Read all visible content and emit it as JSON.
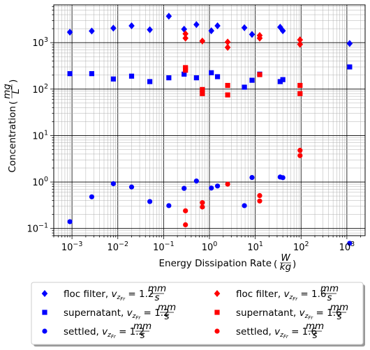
{
  "chart_data": {
    "type": "scatter",
    "title": "",
    "xlabel_parts": [
      "Energy Dissipation Rate ",
      "W",
      "kg"
    ],
    "ylabel_parts": [
      "Concentration ",
      "mg",
      "L"
    ],
    "x_scale": "log",
    "y_scale": "log",
    "xlim": [
      0.0004,
      2500
    ],
    "ylim": [
      0.07,
      6500
    ],
    "x_ticks": [
      {
        "base": "10",
        "exp": "−3",
        "value": 0.001
      },
      {
        "base": "10",
        "exp": "−2",
        "value": 0.01
      },
      {
        "base": "10",
        "exp": "−1",
        "value": 0.1
      },
      {
        "base": "10",
        "exp": "0",
        "value": 1
      },
      {
        "base": "10",
        "exp": "1",
        "value": 10
      },
      {
        "base": "10",
        "exp": "2",
        "value": 100
      },
      {
        "base": "10",
        "exp": "3",
        "value": 1000
      }
    ],
    "y_ticks": [
      {
        "base": "10",
        "exp": "−1",
        "value": 0.1
      },
      {
        "base": "10",
        "exp": "0",
        "value": 1
      },
      {
        "base": "10",
        "exp": "1",
        "value": 10
      },
      {
        "base": "10",
        "exp": "2",
        "value": 100
      },
      {
        "base": "10",
        "exp": "3",
        "value": 1000
      }
    ],
    "grid": "major and minor",
    "legend_position": "below plot, two columns",
    "legend_entries": [
      {
        "prefix": "floc filter, ",
        "v_sub": "z",
        "v_subsub": "Fr",
        "eq": " = 1.2",
        "unit_num": "mm",
        "unit_den": "s"
      },
      {
        "prefix": "supernatant, ",
        "v_sub": "z",
        "v_subsub": "Fr",
        "eq": " = 1.2",
        "unit_num": "mm",
        "unit_den": "s"
      },
      {
        "prefix": "settled, ",
        "v_sub": "z",
        "v_subsub": "Fr",
        "eq": " = 1.2",
        "unit_num": "mm",
        "unit_den": "s"
      },
      {
        "prefix": "floc filter, ",
        "v_sub": "z",
        "v_subsub": "Fr",
        "eq": " = 1.6",
        "unit_num": "mm",
        "unit_den": "s"
      },
      {
        "prefix": "supernatant, ",
        "v_sub": "z",
        "v_subsub": "Fr",
        "eq": " = 1.6",
        "unit_num": "mm",
        "unit_den": "s"
      },
      {
        "prefix": "settled, ",
        "v_sub": "z",
        "v_subsub": "Fr",
        "eq": " = 1.6",
        "unit_num": "mm",
        "unit_den": "s"
      }
    ],
    "series": [
      {
        "marker": "diamond",
        "color": "#0000ff",
        "points": [
          [
            0.0009,
            1680
          ],
          [
            0.0027,
            1780
          ],
          [
            0.008,
            2050
          ],
          [
            0.02,
            2300
          ],
          [
            0.05,
            1900
          ],
          [
            0.13,
            3700
          ],
          [
            0.28,
            1950
          ],
          [
            0.52,
            2450
          ],
          [
            1.1,
            1800
          ],
          [
            1.5,
            2300
          ],
          [
            5.8,
            2100
          ],
          [
            8.5,
            1500
          ],
          [
            35,
            2150
          ],
          [
            40,
            1800
          ],
          [
            1150,
            960
          ]
        ]
      },
      {
        "marker": "square",
        "color": "#0000ff",
        "points": [
          [
            0.0009,
            215
          ],
          [
            0.0027,
            215
          ],
          [
            0.008,
            165
          ],
          [
            0.02,
            190
          ],
          [
            0.05,
            145
          ],
          [
            0.13,
            175
          ],
          [
            0.28,
            210
          ],
          [
            0.52,
            175
          ],
          [
            1.1,
            225
          ],
          [
            1.5,
            185
          ],
          [
            5.8,
            110
          ],
          [
            8.5,
            155
          ],
          [
            12.5,
            210
          ],
          [
            35,
            145
          ],
          [
            40,
            160
          ],
          [
            1150,
            300
          ]
        ]
      },
      {
        "marker": "circle",
        "color": "#0000ff",
        "points": [
          [
            0.0009,
            0.14
          ],
          [
            0.0027,
            0.48
          ],
          [
            0.008,
            0.92
          ],
          [
            0.02,
            0.78
          ],
          [
            0.05,
            0.38
          ],
          [
            0.13,
            0.31
          ],
          [
            0.28,
            0.73
          ],
          [
            0.52,
            1.05
          ],
          [
            1.1,
            0.74
          ],
          [
            1.5,
            0.82
          ],
          [
            5.8,
            0.31
          ],
          [
            8.5,
            1.25
          ],
          [
            35,
            1.28
          ],
          [
            40,
            1.24
          ],
          [
            1150,
            0.048
          ]
        ]
      },
      {
        "marker": "diamond",
        "color": "#ff0000",
        "points": [
          [
            0.3,
            1550
          ],
          [
            0.3,
            1250
          ],
          [
            0.7,
            1080
          ],
          [
            2.5,
            1030
          ],
          [
            2.5,
            790
          ],
          [
            12.5,
            1430
          ],
          [
            12.5,
            1250
          ],
          [
            95,
            1150
          ],
          [
            95,
            920
          ]
        ]
      },
      {
        "marker": "square",
        "color": "#ff0000",
        "points": [
          [
            0.3,
            290
          ],
          [
            0.3,
            255
          ],
          [
            0.7,
            98
          ],
          [
            0.7,
            80
          ],
          [
            2.5,
            120
          ],
          [
            2.5,
            75
          ],
          [
            12.5,
            205
          ],
          [
            95,
            120
          ],
          [
            95,
            80
          ]
        ]
      },
      {
        "marker": "circle",
        "color": "#ff0000",
        "points": [
          [
            0.3,
            0.24
          ],
          [
            0.3,
            0.12
          ],
          [
            0.7,
            0.36
          ],
          [
            0.7,
            0.29
          ],
          [
            2.5,
            0.9
          ],
          [
            12.5,
            0.51
          ],
          [
            12.5,
            0.39
          ],
          [
            95,
            4.8
          ],
          [
            95,
            3.7
          ]
        ]
      }
    ]
  }
}
